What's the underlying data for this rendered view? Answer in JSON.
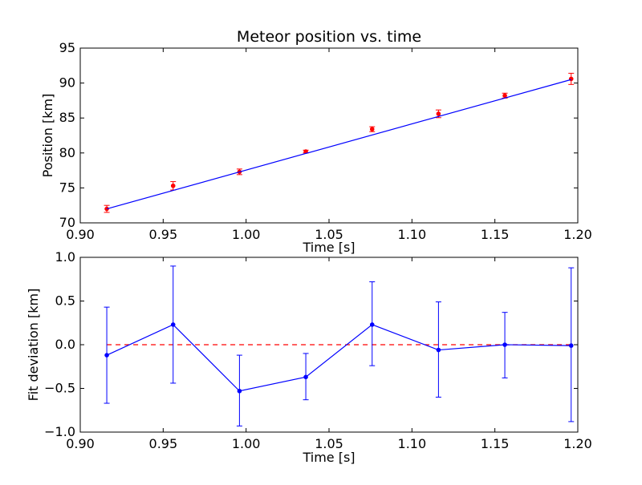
{
  "chart_data": [
    {
      "type": "scatter",
      "title": "Meteor position vs. time",
      "xlabel": "Time [s]",
      "ylabel": "Position [km]",
      "xlim": [
        0.9,
        1.2
      ],
      "ylim": [
        70,
        95
      ],
      "xticks": [
        0.9,
        0.95,
        1.0,
        1.05,
        1.1,
        1.15,
        1.2
      ],
      "xtick_labels": [
        "0.90",
        "0.95",
        "1.00",
        "1.05",
        "1.10",
        "1.15",
        "1.20"
      ],
      "yticks": [
        70,
        75,
        80,
        85,
        90,
        95
      ],
      "ytick_labels": [
        "70",
        "75",
        "80",
        "85",
        "90",
        "95"
      ],
      "grid": false,
      "series": [
        {
          "kind": "errorbar-points",
          "color": "#ff0000",
          "x": [
            0.916,
            0.956,
            0.996,
            1.036,
            1.076,
            1.116,
            1.156,
            1.196
          ],
          "y": [
            72.0,
            75.3,
            77.3,
            80.2,
            83.4,
            85.6,
            88.2,
            90.6
          ],
          "yerr": [
            0.5,
            0.6,
            0.4,
            0.2,
            0.35,
            0.55,
            0.35,
            0.8
          ]
        },
        {
          "kind": "fit-line",
          "color": "#0000ff",
          "x": [
            0.916,
            1.196
          ],
          "y": [
            72.0,
            90.5
          ]
        }
      ]
    },
    {
      "type": "line",
      "title": "",
      "xlabel": "Time [s]",
      "ylabel": "Fit deviation [km]",
      "xlim": [
        0.9,
        1.2
      ],
      "ylim": [
        -1.0,
        1.0
      ],
      "xticks": [
        0.9,
        0.95,
        1.0,
        1.05,
        1.1,
        1.15,
        1.2
      ],
      "xtick_labels": [
        "0.90",
        "0.95",
        "1.00",
        "1.05",
        "1.10",
        "1.15",
        "1.20"
      ],
      "yticks": [
        -1.0,
        -0.5,
        0.0,
        0.5,
        1.0
      ],
      "ytick_labels": [
        "−1.0",
        "−0.5",
        "0.0",
        "0.5",
        "1.0"
      ],
      "grid": false,
      "reference_line": {
        "y": 0.0,
        "color": "#ff0000",
        "style": "dashed"
      },
      "series": [
        {
          "kind": "errorbar-line",
          "color": "#0000ff",
          "x": [
            0.916,
            0.956,
            0.996,
            1.036,
            1.076,
            1.116,
            1.156,
            1.196
          ],
          "y": [
            -0.12,
            0.23,
            -0.53,
            -0.37,
            0.23,
            -0.06,
            0.0,
            -0.01
          ],
          "yerr_low": [
            0.55,
            0.67,
            0.4,
            0.26,
            0.47,
            0.54,
            0.38,
            0.87
          ],
          "yerr_high": [
            0.55,
            0.67,
            0.41,
            0.27,
            0.49,
            0.55,
            0.37,
            0.89
          ]
        }
      ]
    }
  ]
}
